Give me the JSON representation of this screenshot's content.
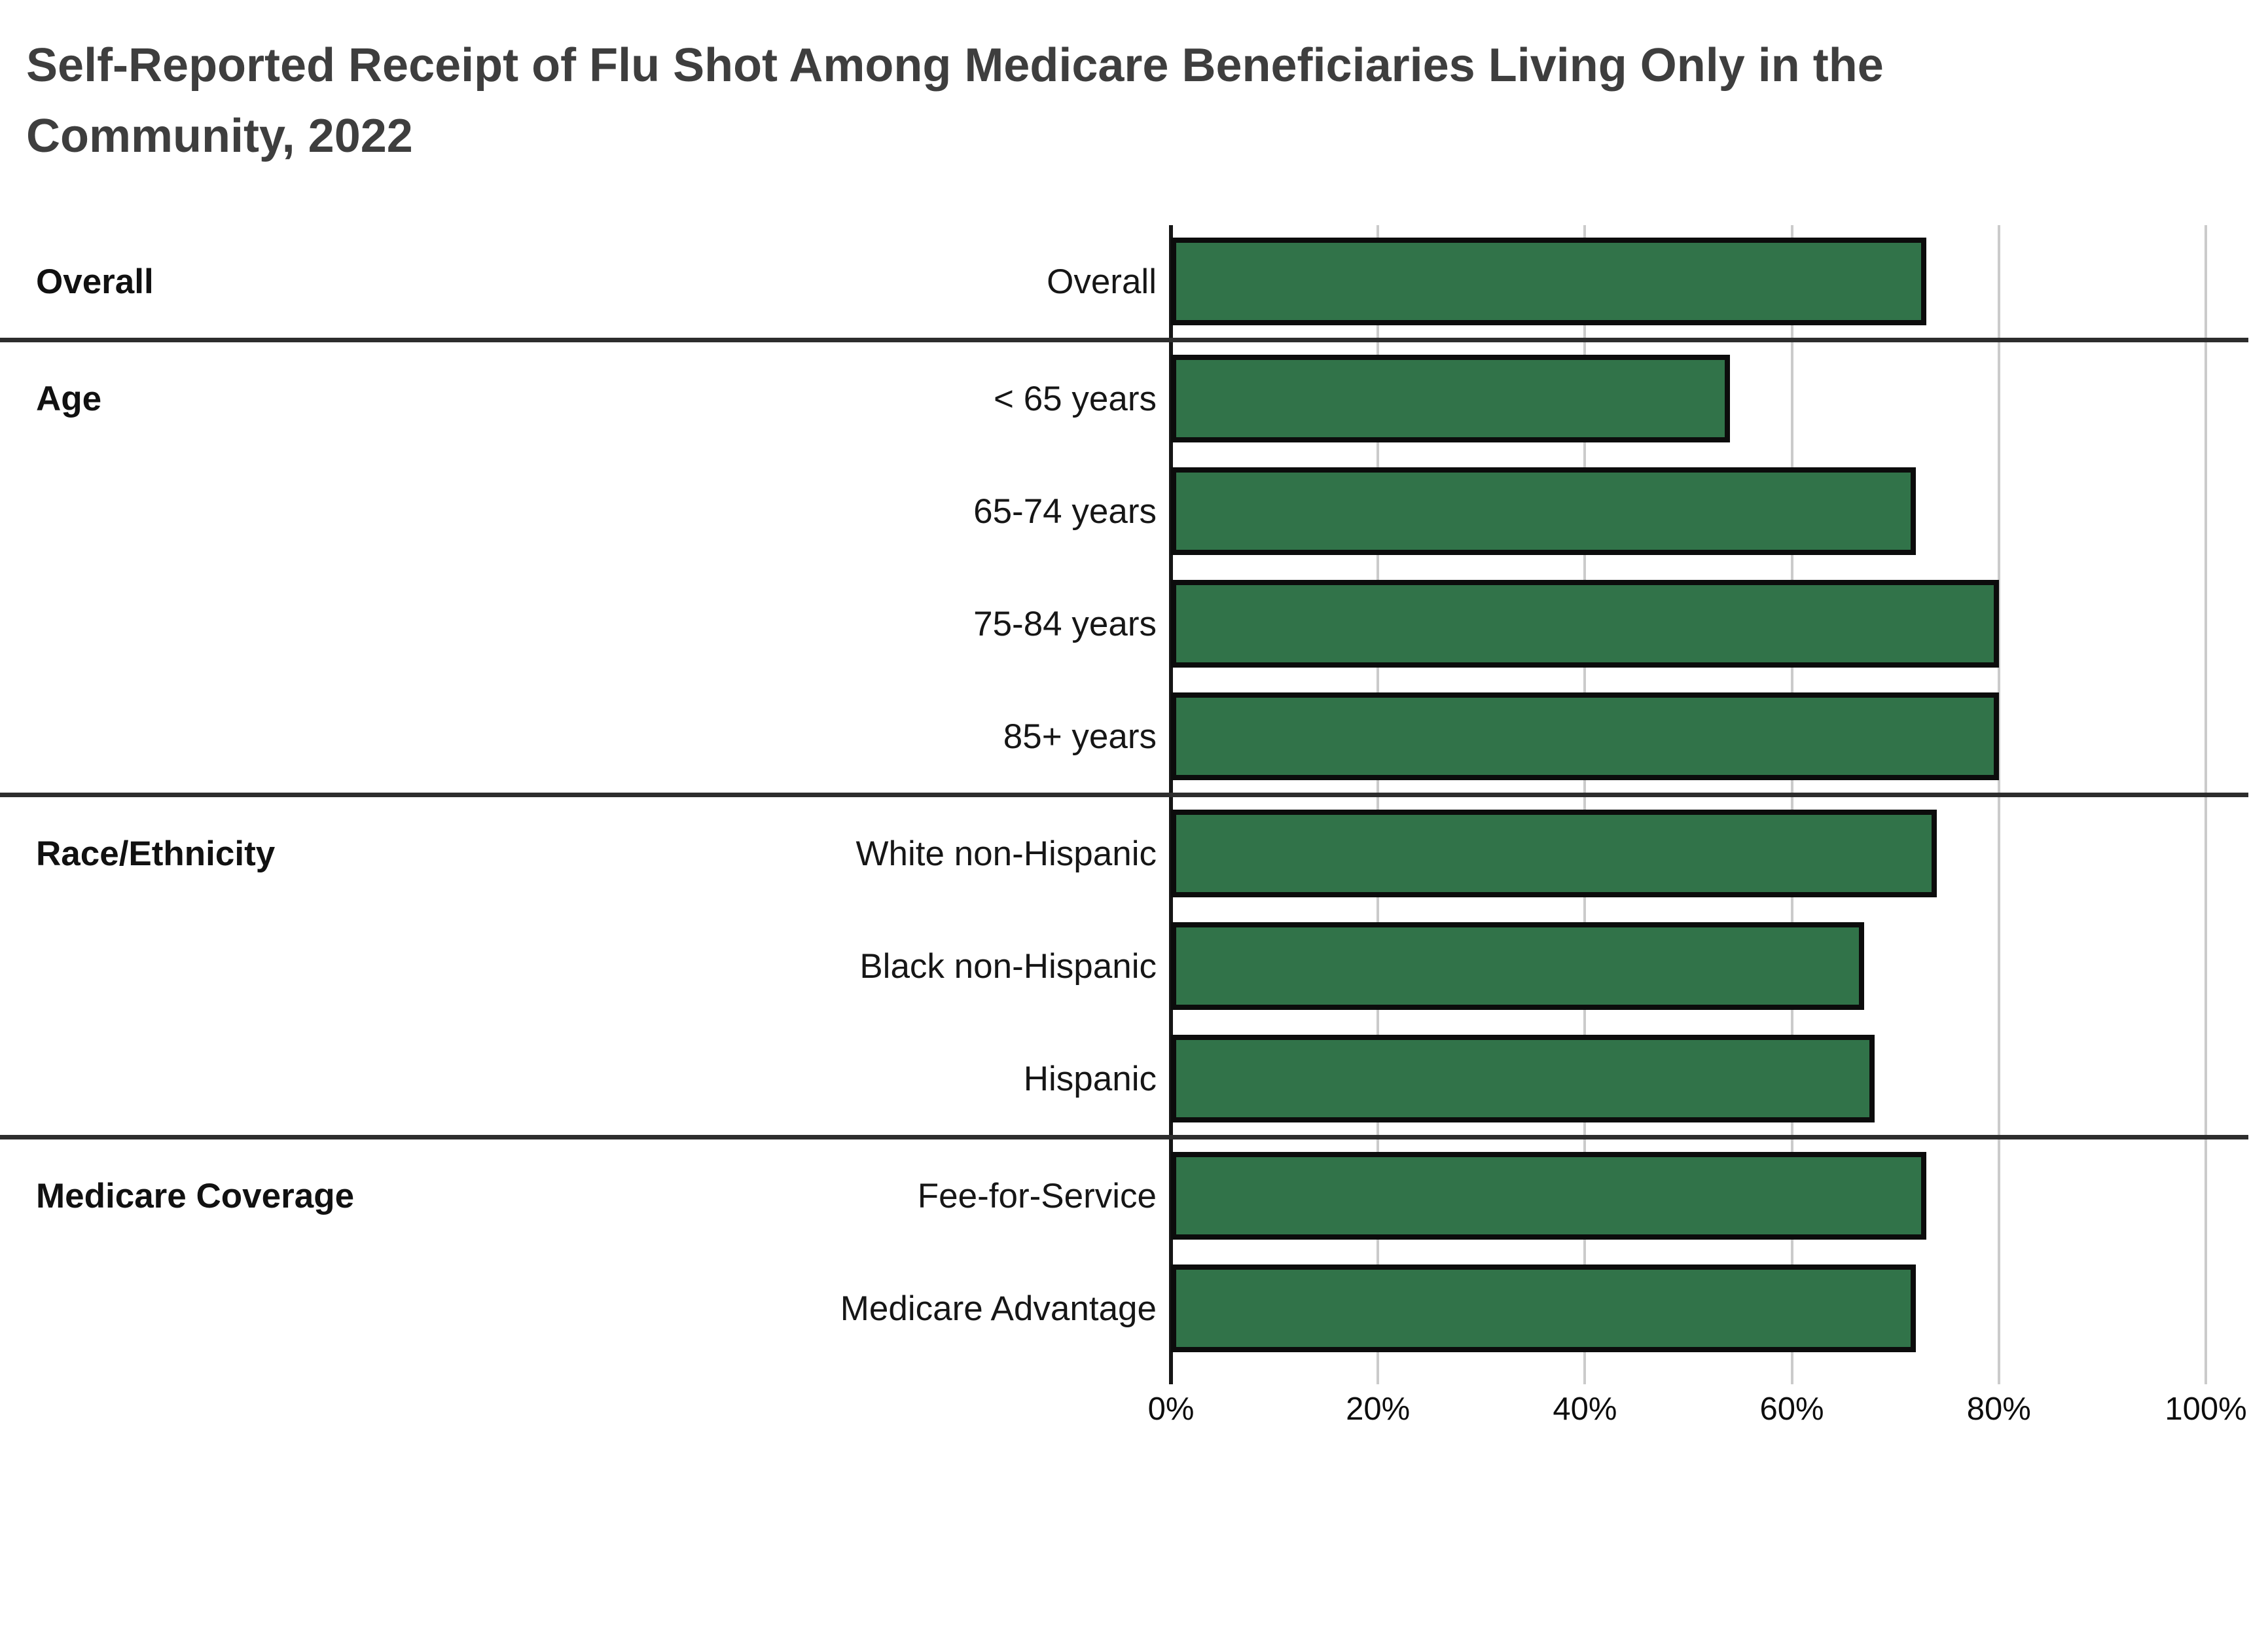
{
  "title": {
    "line1": "Self-Reported Receipt of Flu Shot Among Medicare Beneficiaries Living Only in the",
    "line2": "Community, 2022"
  },
  "x_axis": {
    "tick_labels": [
      "0%",
      "20%",
      "40%",
      "60%",
      "80%",
      "100%"
    ]
  },
  "groups": [
    {
      "label": "Overall",
      "rows": [
        {
          "label": "Overall",
          "value": 73
        }
      ]
    },
    {
      "label": "Age",
      "rows": [
        {
          "label": "< 65 years",
          "value": 54
        },
        {
          "label": "65-74 years",
          "value": 72
        },
        {
          "label": "75-84 years",
          "value": 80
        },
        {
          "label": "85+ years",
          "value": 80
        }
      ]
    },
    {
      "label": "Race/Ethnicity",
      "rows": [
        {
          "label": "White non-Hispanic",
          "value": 74
        },
        {
          "label": "Black non-Hispanic",
          "value": 67
        },
        {
          "label": "Hispanic",
          "value": 68
        }
      ]
    },
    {
      "label": "Medicare Coverage",
      "rows": [
        {
          "label": "Fee-for-Service",
          "value": 73
        },
        {
          "label": "Medicare Advantage",
          "value": 72
        }
      ]
    }
  ],
  "colors": {
    "bar_fill": "#317349",
    "bar_border": "#0c0c0c",
    "gridline": "#cbcbcb",
    "axis_line": "#161616",
    "separator": "#2d2d2d",
    "title_text": "#3e3e3e",
    "label_text": "#161616"
  },
  "chart_data": {
    "type": "bar",
    "orientation": "horizontal",
    "title": "Self-Reported Receipt of Flu Shot Among Medicare Beneficiaries Living Only in the Community, 2022",
    "categories": [
      "Overall",
      "< 65 years",
      "65-74 years",
      "75-84 years",
      "85+ years",
      "White non-Hispanic",
      "Black non-Hispanic",
      "Hispanic",
      "Fee-for-Service",
      "Medicare Advantage"
    ],
    "values": [
      73,
      54,
      72,
      80,
      80,
      74,
      67,
      68,
      73,
      72
    ],
    "category_groups": [
      "Overall",
      "Age",
      "Age",
      "Age",
      "Age",
      "Race/Ethnicity",
      "Race/Ethnicity",
      "Race/Ethnicity",
      "Medicare Coverage",
      "Medicare Coverage"
    ],
    "xlabel": "",
    "ylabel": "",
    "xlim": [
      0,
      100
    ],
    "x_tick_labels": [
      "0%",
      "20%",
      "40%",
      "60%",
      "80%",
      "100%"
    ],
    "grid": true,
    "legend": false,
    "bar_color": "#317349"
  }
}
